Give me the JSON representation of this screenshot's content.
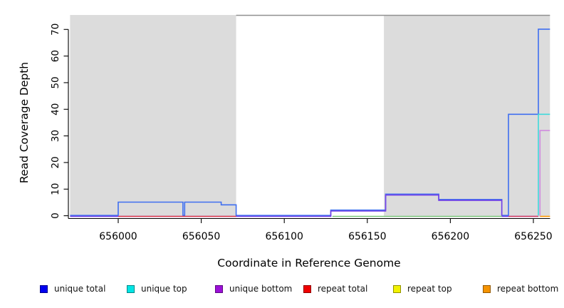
{
  "page": {
    "background": "#ffffff"
  },
  "chart_data": {
    "type": "line",
    "step": true,
    "title": "",
    "xlabel": "Coordinate in Reference Genome",
    "ylabel": "Read Coverage Depth",
    "x_ticks": [
      656000,
      656050,
      656100,
      656150,
      656200,
      656250
    ],
    "y_ticks": [
      0,
      10,
      20,
      30,
      40,
      50,
      60,
      70
    ],
    "xlim": [
      655971,
      656260
    ],
    "ylim": [
      0,
      75.4
    ],
    "grid": false,
    "legend_position": "bottom",
    "axis_color": "#000000",
    "shaded_regions": [
      {
        "name": "left-gray-block",
        "x0": 655971,
        "x1": 656071,
        "color": "#DCDCDC"
      },
      {
        "name": "right-gray-block",
        "x0": 656160,
        "x1": 656260,
        "color": "#DCDCDC"
      }
    ],
    "top_boundary_line": {
      "x0": 656071,
      "x1": 656260,
      "y": 75.3,
      "color": "#8F8F8F"
    },
    "series": [
      {
        "name": "unique total",
        "color": "#3F6FF0",
        "steps": [
          [
            655971,
            656000,
            0
          ],
          [
            656000,
            656039,
            5
          ],
          [
            656039,
            656040,
            0
          ],
          [
            656040,
            656062,
            5
          ],
          [
            656062,
            656071,
            4
          ],
          [
            656071,
            656128,
            0
          ],
          [
            656128,
            656161,
            2
          ],
          [
            656161,
            656193,
            8
          ],
          [
            656193,
            656231,
            6
          ],
          [
            656231,
            656235,
            0
          ],
          [
            656235,
            656253,
            38
          ],
          [
            656253,
            656260,
            70
          ]
        ]
      },
      {
        "name": "unique top",
        "color": "#3FD9DB",
        "steps": [
          [
            656253,
            656253,
            0
          ],
          [
            656253,
            656260,
            38
          ]
        ]
      },
      {
        "name": "unique bottom",
        "color": "#7340E6",
        "steps": [
          [
            655971,
            656128,
            0
          ],
          [
            656128,
            656161,
            2
          ],
          [
            656161,
            656193,
            8
          ],
          [
            656193,
            656231,
            6
          ],
          [
            656231,
            656253,
            0
          ]
        ]
      },
      {
        "name": "repeat total",
        "color": "#E2414B",
        "steps": [
          [
            656000,
            656071,
            0
          ]
        ]
      },
      {
        "name": "repeat top",
        "color": "#F2F200",
        "steps": []
      },
      {
        "name": "repeat bottom",
        "color": "#FF9800",
        "steps": [
          [
            656254,
            656260,
            0
          ]
        ]
      }
    ],
    "extra_segments": [
      {
        "name": "green-baseline",
        "color": "#7CC87C",
        "steps": [
          [
            656129,
            656231,
            0
          ]
        ]
      },
      {
        "name": "crimson-baseline",
        "color": "#D84560",
        "steps": [
          [
            656235,
            656253,
            0
          ]
        ]
      },
      {
        "name": "plum-right-step",
        "color": "#CF8CDE",
        "steps": [
          [
            656254,
            656254,
            0
          ],
          [
            656254,
            656260,
            32
          ]
        ]
      }
    ]
  },
  "axis_titles": {
    "x": "Coordinate in Reference Genome",
    "y": "Read Coverage Depth"
  },
  "legend": {
    "items": [
      {
        "label": "unique total",
        "swatch": "#0000F0"
      },
      {
        "label": "unique top",
        "swatch": "#00E5E5"
      },
      {
        "label": "unique bottom",
        "swatch": "#9C10D8"
      },
      {
        "label": "repeat total",
        "swatch": "#F00000"
      },
      {
        "label": "repeat top",
        "swatch": "#F2F200"
      },
      {
        "label": "repeat bottom",
        "swatch": "#F59300"
      }
    ]
  }
}
